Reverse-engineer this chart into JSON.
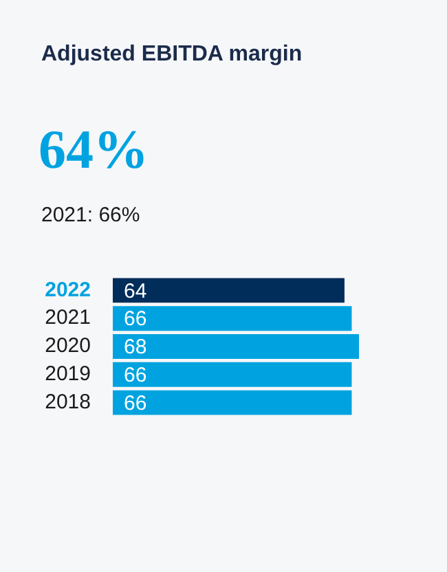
{
  "chart_data": {
    "type": "bar",
    "orientation": "horizontal",
    "title": "Adjusted EBITDA margin",
    "annotations": [
      "64%",
      "2021: 66%"
    ],
    "categories": [
      "2022",
      "2021",
      "2020",
      "2019",
      "2018"
    ],
    "values": [
      64,
      66,
      68,
      66,
      66
    ],
    "colors": [
      "#002d5a",
      "#00a3e0",
      "#00a3e0",
      "#00a3e0",
      "#00a3e0"
    ],
    "xlim": [
      0,
      68
    ],
    "tick_labels": "y",
    "data_labels": true,
    "grid": false,
    "legend": false
  }
}
